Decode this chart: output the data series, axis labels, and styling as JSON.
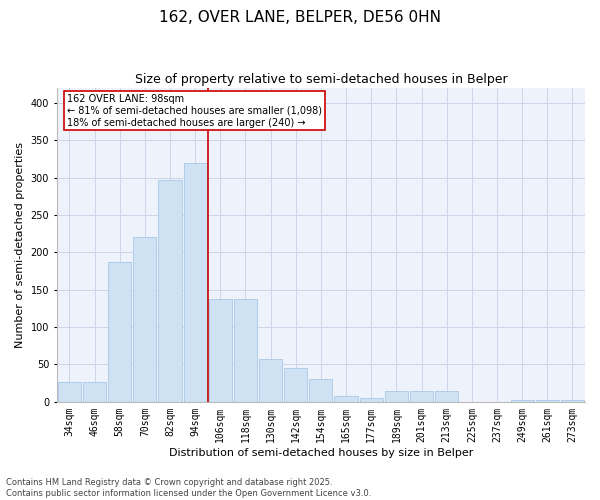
{
  "title1": "162, OVER LANE, BELPER, DE56 0HN",
  "title2": "Size of property relative to semi-detached houses in Belper",
  "xlabel": "Distribution of semi-detached houses by size in Belper",
  "ylabel": "Number of semi-detached properties",
  "categories": [
    "34sqm",
    "46sqm",
    "58sqm",
    "70sqm",
    "82sqm",
    "94sqm",
    "106sqm",
    "118sqm",
    "130sqm",
    "142sqm",
    "154sqm",
    "165sqm",
    "177sqm",
    "189sqm",
    "201sqm",
    "213sqm",
    "225sqm",
    "237sqm",
    "249sqm",
    "261sqm",
    "273sqm"
  ],
  "values": [
    27,
    27,
    187,
    220,
    297,
    320,
    137,
    137,
    57,
    45,
    30,
    8,
    5,
    15,
    15,
    15,
    0,
    0,
    3,
    2,
    2
  ],
  "bar_color": "#cfe2f3",
  "bar_edge_color": "#a8c8e8",
  "grid_color": "#ccd6e8",
  "background_color": "#eef2fa",
  "property_bin_index": 5,
  "red_line_color": "#cc0000",
  "annotation_text1": "162 OVER LANE: 98sqm",
  "annotation_text2": "← 81% of semi-detached houses are smaller (1,098)",
  "annotation_text3": "18% of semi-detached houses are larger (240) →",
  "ylim": [
    0,
    420
  ],
  "yticks": [
    0,
    50,
    100,
    150,
    200,
    250,
    300,
    350,
    400
  ],
  "footer1": "Contains HM Land Registry data © Crown copyright and database right 2025.",
  "footer2": "Contains public sector information licensed under the Open Government Licence v3.0.",
  "title1_fontsize": 11,
  "title2_fontsize": 9,
  "xlabel_fontsize": 8,
  "ylabel_fontsize": 8,
  "tick_fontsize": 7,
  "footer_fontsize": 6
}
